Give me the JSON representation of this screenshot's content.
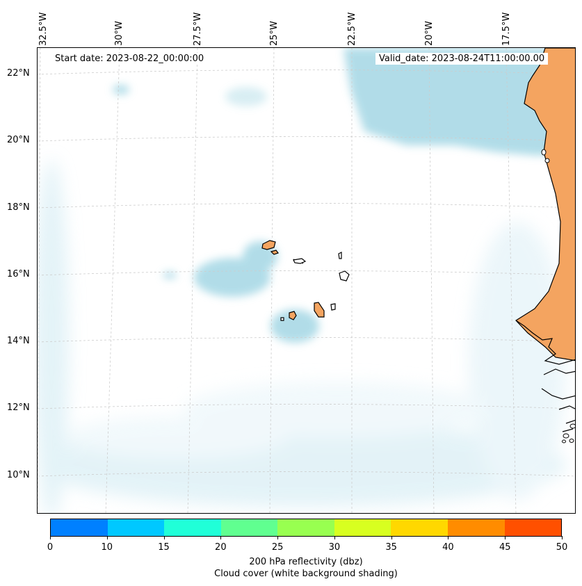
{
  "map": {
    "lon_labels": [
      "32.5°W",
      "30°W",
      "27.5°W",
      "25°W",
      "22.5°W",
      "20°W",
      "17.5°W"
    ],
    "lat_labels": [
      "22°N",
      "20°N",
      "18°N",
      "16°N",
      "14°N",
      "12°N",
      "10°N"
    ],
    "start_date": "Start date: 2023-08-22_00:00:00",
    "valid_date": "Valid_date: 2023-08-24T11:00:00.00",
    "features": {
      "land": "Africa west coast (Mauritania, Senegal, Gambia, Guinea-Bissau)",
      "islands": "Cape Verde islands"
    },
    "colors": {
      "land_fill": "#f4a460",
      "cloud": "#add8e6",
      "coast_line": "#000000",
      "grid": "#cccccc"
    }
  },
  "colorbar": {
    "ticks": [
      "0",
      "10",
      "15",
      "20",
      "25",
      "30",
      "35",
      "40",
      "45",
      "50"
    ],
    "colors": [
      "#0080ff",
      "#00c8ff",
      "#20ffd8",
      "#60ff90",
      "#98ff50",
      "#d8ff20",
      "#ffd800",
      "#ff8c00",
      "#ff5000"
    ],
    "label_line1": "200 hPa reflectivity (dbz)",
    "label_line2": "Cloud cover (white background shading)"
  }
}
